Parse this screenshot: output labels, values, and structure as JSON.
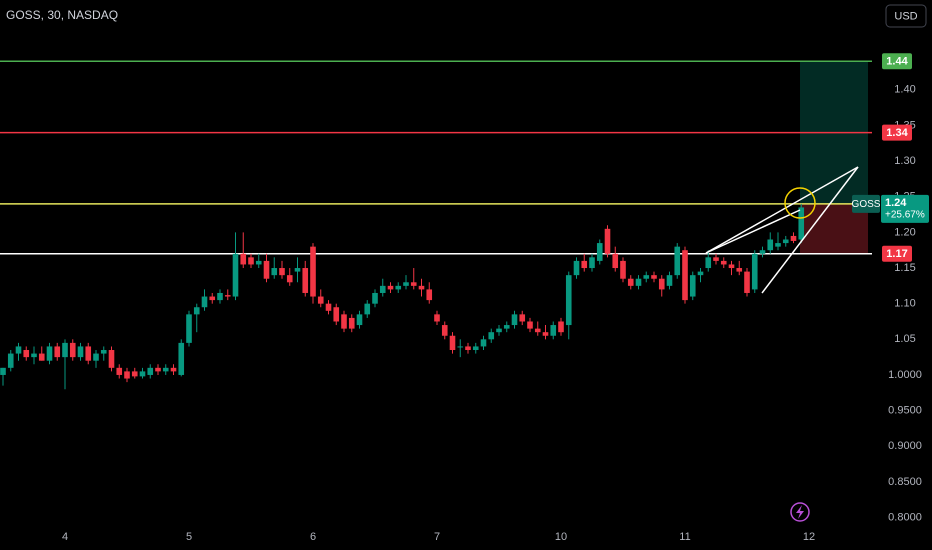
{
  "chart_data": {
    "type": "candlestick",
    "title": "GOSS, 30, NASDAQ",
    "currency": "USD",
    "symbol": "GOSS",
    "last_price": 1.24,
    "change_label": "+25.67%",
    "up_color": "#089981",
    "down_color": "#f23645",
    "grid": false,
    "categories": [
      null,
      null,
      null,
      null,
      null,
      null,
      null,
      null,
      "4",
      null,
      null,
      null,
      null,
      null,
      null,
      null,
      null,
      null,
      null,
      null,
      null,
      null,
      null,
      null,
      "5",
      null,
      null,
      null,
      null,
      null,
      null,
      null,
      null,
      null,
      null,
      null,
      null,
      null,
      null,
      null,
      "6",
      null,
      null,
      null,
      null,
      null,
      null,
      null,
      null,
      null,
      null,
      null,
      null,
      null,
      null,
      null,
      "7",
      null,
      null,
      null,
      null,
      null,
      null,
      null,
      null,
      null,
      null,
      null,
      null,
      null,
      null,
      null,
      "10",
      null,
      null,
      null,
      null,
      null,
      null,
      null,
      null,
      null,
      null,
      null,
      null,
      null,
      null,
      null,
      "11",
      null,
      null,
      null,
      null,
      null,
      null,
      null,
      null,
      null,
      null,
      null,
      null,
      null,
      null,
      null,
      "12"
    ],
    "open": [
      1.0,
      1.01,
      1.03,
      1.035,
      1.025,
      1.03,
      1.02,
      1.04,
      1.025,
      1.045,
      1.025,
      1.04,
      1.02,
      1.03,
      1.035,
      1.01,
      1.005,
      1.005,
      0.998,
      1.0,
      1.01,
      1.005,
      1.01,
      1.0,
      1.045,
      1.085,
      1.095,
      1.11,
      1.105,
      1.112,
      1.11,
      1.17,
      1.165,
      1.155,
      1.16,
      1.14,
      1.15,
      1.14,
      1.145,
      1.15,
      1.18,
      1.11,
      1.1,
      1.095,
      1.085,
      1.08,
      1.07,
      1.085,
      1.1,
      1.115,
      1.125,
      1.12,
      1.125,
      1.13,
      1.125,
      1.12,
      1.085,
      1.07,
      1.055,
      1.04,
      1.04,
      1.035,
      1.04,
      1.05,
      1.06,
      1.065,
      1.07,
      1.085,
      1.075,
      1.065,
      1.06,
      1.055,
      1.075,
      1.07,
      1.14,
      1.16,
      1.15,
      1.16,
      1.205,
      1.17,
      1.16,
      1.135,
      1.125,
      1.135,
      1.14,
      1.135,
      1.125,
      1.14,
      1.175,
      1.11,
      1.14,
      1.15,
      1.165,
      1.16,
      1.155,
      1.15,
      1.145,
      1.12,
      1.17,
      1.175,
      1.18,
      1.185,
      1.195,
      1.19,
      null
    ],
    "high": [
      1.01,
      1.035,
      1.045,
      1.04,
      1.04,
      1.04,
      1.045,
      1.045,
      1.05,
      1.05,
      1.045,
      1.045,
      1.035,
      1.04,
      1.04,
      1.015,
      1.01,
      1.01,
      1.01,
      1.015,
      1.015,
      1.015,
      1.015,
      1.05,
      1.09,
      1.1,
      1.12,
      1.115,
      1.12,
      1.12,
      1.2,
      1.2,
      1.17,
      1.17,
      1.17,
      1.165,
      1.16,
      1.15,
      1.165,
      1.16,
      1.185,
      1.12,
      1.105,
      1.1,
      1.09,
      1.085,
      1.09,
      1.105,
      1.12,
      1.135,
      1.13,
      1.13,
      1.14,
      1.15,
      1.135,
      1.13,
      1.09,
      1.075,
      1.06,
      1.05,
      1.045,
      1.045,
      1.055,
      1.065,
      1.07,
      1.075,
      1.09,
      1.09,
      1.08,
      1.075,
      1.07,
      1.075,
      1.08,
      1.145,
      1.165,
      1.17,
      1.17,
      1.19,
      1.21,
      1.18,
      1.165,
      1.14,
      1.14,
      1.145,
      1.145,
      1.14,
      1.145,
      1.185,
      1.18,
      1.145,
      1.15,
      1.175,
      1.17,
      1.165,
      1.16,
      1.16,
      1.15,
      1.175,
      1.18,
      1.2,
      1.2,
      1.195,
      1.2,
      1.24,
      null
    ],
    "low": [
      0.985,
      1.005,
      1.02,
      1.02,
      1.015,
      1.02,
      1.015,
      1.02,
      0.98,
      1.02,
      1.02,
      1.015,
      1.01,
      1.02,
      1.005,
      0.995,
      0.99,
      0.995,
      0.995,
      0.995,
      1.0,
      1.0,
      1.0,
      0.998,
      1.04,
      1.06,
      1.09,
      1.1,
      1.1,
      1.105,
      1.105,
      1.15,
      1.15,
      1.15,
      1.13,
      1.135,
      1.135,
      1.125,
      1.13,
      1.11,
      1.1,
      1.095,
      1.085,
      1.07,
      1.06,
      1.06,
      1.065,
      1.08,
      1.095,
      1.11,
      1.115,
      1.115,
      1.12,
      1.12,
      1.11,
      1.1,
      1.07,
      1.05,
      1.03,
      1.025,
      1.03,
      1.03,
      1.035,
      1.045,
      1.055,
      1.06,
      1.065,
      1.07,
      1.06,
      1.055,
      1.05,
      1.05,
      1.055,
      1.05,
      1.135,
      1.145,
      1.145,
      1.155,
      1.165,
      1.145,
      1.13,
      1.12,
      1.12,
      1.13,
      1.13,
      1.11,
      1.12,
      1.135,
      1.1,
      1.105,
      1.13,
      1.145,
      1.155,
      1.15,
      1.14,
      1.14,
      1.11,
      1.115,
      1.165,
      1.17,
      1.175,
      1.18,
      1.185,
      1.185,
      null
    ],
    "close": [
      1.01,
      1.03,
      1.04,
      1.025,
      1.03,
      1.02,
      1.04,
      1.025,
      1.045,
      1.025,
      1.04,
      1.02,
      1.03,
      1.035,
      1.01,
      1.0,
      0.995,
      0.998,
      1.005,
      1.01,
      1.005,
      1.01,
      1.005,
      1.045,
      1.085,
      1.095,
      1.11,
      1.105,
      1.115,
      1.11,
      1.17,
      1.155,
      1.155,
      1.16,
      1.135,
      1.15,
      1.14,
      1.13,
      1.15,
      1.115,
      1.11,
      1.1,
      1.09,
      1.075,
      1.065,
      1.065,
      1.085,
      1.1,
      1.115,
      1.125,
      1.12,
      1.125,
      1.13,
      1.125,
      1.12,
      1.105,
      1.075,
      1.055,
      1.035,
      1.04,
      1.035,
      1.04,
      1.05,
      1.06,
      1.065,
      1.07,
      1.085,
      1.075,
      1.065,
      1.06,
      1.055,
      1.07,
      1.06,
      1.14,
      1.16,
      1.15,
      1.165,
      1.185,
      1.17,
      1.15,
      1.135,
      1.125,
      1.135,
      1.14,
      1.135,
      1.12,
      1.14,
      1.18,
      1.105,
      1.14,
      1.145,
      1.165,
      1.16,
      1.155,
      1.15,
      1.145,
      1.115,
      1.17,
      1.175,
      1.19,
      1.185,
      1.19,
      1.188,
      1.235,
      null
    ],
    "ylim": [
      0.7825,
      1.526
    ],
    "yticks": [
      {
        "value": 0.8,
        "label": "0.8000"
      },
      {
        "value": 0.85,
        "label": "0.8500"
      },
      {
        "value": 0.9,
        "label": "0.9000"
      },
      {
        "value": 0.95,
        "label": "0.9500"
      },
      {
        "value": 1.0,
        "label": "1.0000"
      },
      1.05,
      {
        "value": 1.1,
        "label": "1.10"
      },
      1.15,
      {
        "value": 1.2,
        "label": "1.20"
      },
      1.25,
      {
        "value": 1.3,
        "label": "1.30"
      },
      1.35,
      {
        "value": 1.4,
        "label": "1.40"
      }
    ],
    "levels": [
      {
        "value": 1.44,
        "color": "#4caf50",
        "label_color": "#4caf50"
      },
      {
        "value": 1.34,
        "color": "#f23645",
        "label_color": "#f23645"
      },
      {
        "value": 1.24,
        "color": "#e6e65c"
      },
      {
        "value": 1.17,
        "color": "#ffffff",
        "label_color": "#f23645"
      }
    ]
  }
}
